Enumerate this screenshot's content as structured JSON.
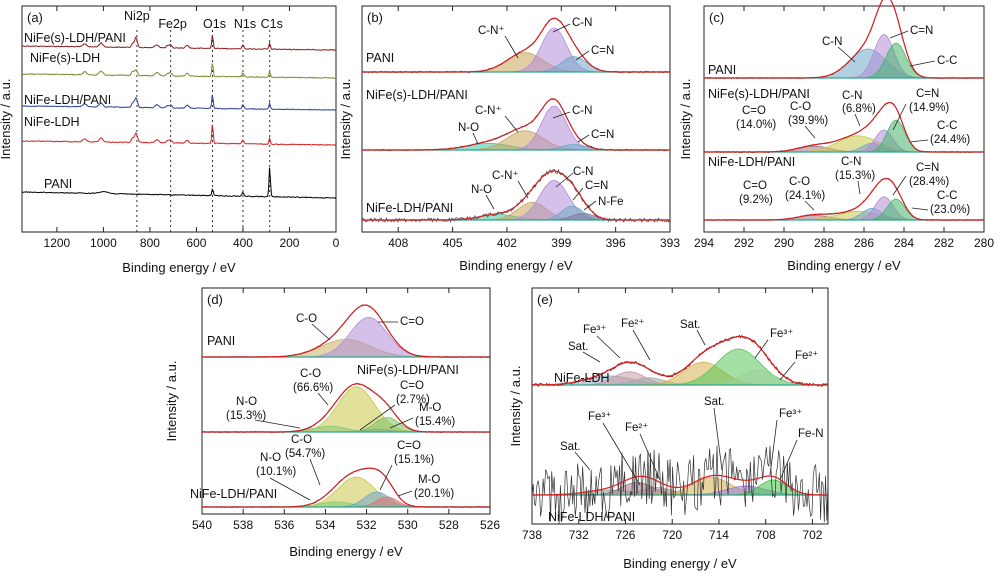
{
  "chart_data": [
    {
      "id": "a",
      "type": "line",
      "panel_label": "(a)",
      "xlabel": "Binding energy / eV",
      "ylabel": "Intensity / a.u.",
      "xlim": [
        1350,
        0
      ],
      "reversed_x": true,
      "xticks": [
        1200,
        1000,
        800,
        600,
        400,
        200,
        0
      ],
      "peak_markers": [
        {
          "name": "Ni2p",
          "x": 856
        },
        {
          "name": "Fe2p",
          "x": 711
        },
        {
          "name": "O1s",
          "x": 531
        },
        {
          "name": "N1s",
          "x": 400
        },
        {
          "name": "C1s",
          "x": 285
        }
      ],
      "series": [
        {
          "name": "NiFe(s)-LDH/PANI",
          "color": "#8b1c1c"
        },
        {
          "name": "NiFe(s)-LDH",
          "color": "#7a8a2a"
        },
        {
          "name": "NiFe-LDH/PANI",
          "color": "#2a3f9a"
        },
        {
          "name": "NiFe-LDH",
          "color": "#d42020"
        },
        {
          "name": "PANI",
          "color": "#000000"
        }
      ]
    },
    {
      "id": "b",
      "type": "area",
      "panel_label": "(b)",
      "xlabel": "Binding energy / eV",
      "ylabel": "Intensity / a.u.",
      "xlim": [
        410,
        393
      ],
      "reversed_x": true,
      "xticks": [
        408,
        405,
        402,
        399,
        396,
        393
      ],
      "samples": [
        {
          "name": "PANI",
          "components": [
            {
              "label": "C-N⁺",
              "center": 401.0,
              "color": "#c9a55a"
            },
            {
              "label": "C-N",
              "center": 399.4,
              "color": "#b28cd9"
            },
            {
              "label": "C=N",
              "center": 398.3,
              "color": "#6fa8c8"
            }
          ]
        },
        {
          "name": "NiFe(s)-LDH/PANI",
          "components": [
            {
              "label": "N-O",
              "center": 403.0,
              "color": "#3fc9a6"
            },
            {
              "label": "C-N⁺",
              "center": 401.0,
              "color": "#c9a55a"
            },
            {
              "label": "C-N",
              "center": 399.4,
              "color": "#b28cd9"
            },
            {
              "label": "C=N",
              "center": 398.3,
              "color": "#6fa8c8"
            }
          ]
        },
        {
          "name": "NiFe-LDH/PANI",
          "components": [
            {
              "label": "N-O",
              "center": 402.5,
              "color": "#3fc9a6"
            },
            {
              "label": "C-N⁺",
              "center": 400.6,
              "color": "#c9a55a"
            },
            {
              "label": "C-N",
              "center": 399.4,
              "color": "#b28cd9"
            },
            {
              "label": "C=N",
              "center": 398.4,
              "color": "#6fa8c8"
            },
            {
              "label": "N-Fe",
              "center": 397.8,
              "color": "#7a7a9a"
            }
          ]
        }
      ]
    },
    {
      "id": "c",
      "type": "area",
      "panel_label": "(c)",
      "xlabel": "Binding energy / eV",
      "ylabel": "Intensity / a.u.",
      "xlim": [
        294,
        280
      ],
      "reversed_x": true,
      "xticks": [
        294,
        292,
        290,
        288,
        286,
        284,
        282,
        280
      ],
      "samples": [
        {
          "name": "PANI",
          "components": [
            {
              "label": "C-N",
              "center": 285.8,
              "color": "#6fa8c8"
            },
            {
              "label": "C=N",
              "center": 285.0,
              "color": "#b28cd9"
            },
            {
              "label": "C-C",
              "center": 284.4,
              "color": "#46b46b"
            }
          ]
        },
        {
          "name": "NiFe(s)-LDH/PANI",
          "components": [
            {
              "label": "C=O",
              "percent": "(14.0%)",
              "center": 288.5,
              "color": "#a0788a"
            },
            {
              "label": "C-O",
              "percent": "(39.9%)",
              "center": 286.3,
              "color": "#c8c84a"
            },
            {
              "label": "C-N",
              "percent": "(6.8%)",
              "center": 285.6,
              "color": "#6fa8c8"
            },
            {
              "label": "C=N",
              "percent": "(14.9%)",
              "center": 285.0,
              "color": "#b28cd9"
            },
            {
              "label": "C-C",
              "percent": "(24.4%)",
              "center": 284.4,
              "color": "#46b46b"
            }
          ]
        },
        {
          "name": "NiFe-LDH/PANI",
          "components": [
            {
              "label": "C=O",
              "percent": "(9.2%)",
              "center": 288.5,
              "color": "#a0788a"
            },
            {
              "label": "C-O",
              "percent": "(24.1%)",
              "center": 286.3,
              "color": "#c8c84a"
            },
            {
              "label": "C-N",
              "percent": "(15.3%)",
              "center": 285.6,
              "color": "#6fa8c8"
            },
            {
              "label": "C=N",
              "percent": "(28.4%)",
              "center": 285.0,
              "color": "#b28cd9"
            },
            {
              "label": "C-C",
              "percent": "(23.0%)",
              "center": 284.4,
              "color": "#46b46b"
            }
          ]
        }
      ]
    },
    {
      "id": "d",
      "type": "area",
      "panel_label": "(d)",
      "xlabel": "Binding energy / eV",
      "ylabel": "Intensity / a.u.",
      "xlim": [
        540,
        526
      ],
      "reversed_x": true,
      "xticks": [
        540,
        538,
        536,
        534,
        532,
        530,
        528,
        526
      ],
      "samples": [
        {
          "name": "PANI",
          "components": [
            {
              "label": "C-O",
              "center": 533.0,
              "color": "#c9b06a"
            },
            {
              "label": "C=O",
              "center": 531.9,
              "color": "#b28cd9"
            }
          ]
        },
        {
          "name": "NiFe(s)-LDH/PANI",
          "components": [
            {
              "label": "N-O",
              "percent": "(15.3%)",
              "center": 533.8,
              "color": "#3fc9a6"
            },
            {
              "label": "C-O",
              "percent": "(66.6%)",
              "center": 532.5,
              "color": "#c8c84a"
            },
            {
              "label": "C=O",
              "percent": "(2.7%)",
              "center": 531.5,
              "color": "#6fa8c8"
            },
            {
              "label": "M-O",
              "percent": "(15.4%)",
              "center": 531.0,
              "color": "#7fc060"
            }
          ]
        },
        {
          "name": "NiFe-LDH/PANI",
          "components": [
            {
              "label": "N-O",
              "percent": "(10.1%)",
              "center": 533.5,
              "color": "#3fc9a6"
            },
            {
              "label": "C-O",
              "percent": "(54.7%)",
              "center": 532.5,
              "color": "#c8c84a"
            },
            {
              "label": "C=O",
              "percent": "(15.1%)",
              "center": 531.5,
              "color": "#6fa8c8"
            },
            {
              "label": "M-O",
              "percent": "(20.1%)",
              "center": 531.0,
              "color": "#e07070"
            }
          ]
        }
      ]
    },
    {
      "id": "e",
      "type": "area",
      "panel_label": "(e)",
      "xlabel": "Binding energy / eV",
      "ylabel": "Intensity / a.u.",
      "xlim": [
        738,
        700
      ],
      "reversed_x": true,
      "xticks": [
        738,
        732,
        726,
        720,
        714,
        708,
        702
      ],
      "samples": [
        {
          "name": "NiFe-LDH",
          "components": [
            {
              "label": "Sat.",
              "center": 728.0,
              "color": "#8fa6c8"
            },
            {
              "label": "Fe³⁺",
              "center": 725.5,
              "color": "#c89aa0"
            },
            {
              "label": "Fe²⁺",
              "center": 723.5,
              "color": "#a8a8a8"
            },
            {
              "label": "Sat.",
              "center": 716.5,
              "color": "#d4b050"
            },
            {
              "label": "Fe³⁺",
              "center": 712.0,
              "color": "#5ac45a"
            },
            {
              "label": "Fe²⁺",
              "center": 710.0,
              "color": "#9ad09a"
            }
          ]
        },
        {
          "name": "NiFe-LDH/PANI",
          "components": [
            {
              "label": "Sat.",
              "center": 728.0,
              "color": "#a0a0a0"
            },
            {
              "label": "Fe³⁺",
              "center": 724.5,
              "color": "#a0788a"
            },
            {
              "label": "Fe²⁺",
              "center": 722.0,
              "color": "#b09090"
            },
            {
              "label": "Sat.",
              "center": 715.0,
              "color": "#d4b050"
            },
            {
              "label": "Fe³⁺",
              "center": 710.5,
              "color": "#9a7ad8"
            },
            {
              "label": "Fe-N",
              "center": 707.0,
              "color": "#46c446"
            }
          ]
        }
      ]
    }
  ],
  "text": {
    "a": {
      "label": "(a)",
      "xlabel": "Binding energy / eV",
      "ylabel": "Intensity / a.u.",
      "ticks": [
        "1200",
        "1000",
        "800",
        "600",
        "400",
        "200",
        "0"
      ],
      "markers": [
        "Ni2p",
        "Fe2p",
        "O1s",
        "N1s",
        "C1s"
      ],
      "samples": [
        "NiFe(s)-LDH/PANI",
        "NiFe(s)-LDH",
        "NiFe-LDH/PANI",
        "NiFe-LDH",
        "PANI"
      ]
    },
    "b": {
      "label": "(b)",
      "xlabel": "Binding energy / eV",
      "ylabel": "Intensity / a.u.",
      "ticks": [
        "408",
        "405",
        "402",
        "399",
        "396",
        "393"
      ],
      "samples": [
        "PANI",
        "NiFe(s)-LDH/PANI",
        "NiFe-LDH/PANI"
      ],
      "peaks": [
        "C-N⁺",
        "C-N",
        "C=N",
        "C-N⁺",
        "N-O",
        "C-N",
        "C=N",
        "C-N⁺",
        "N-O",
        "C-N",
        "C=N",
        "N-Fe"
      ]
    },
    "c": {
      "label": "(c)",
      "xlabel": "Binding energy / eV",
      "ylabel": "Intensity / a.u.",
      "ticks": [
        "294",
        "292",
        "290",
        "288",
        "286",
        "284",
        "282",
        "280"
      ],
      "samples": [
        "PANI",
        "NiFe(s)-LDH/PANI",
        "NiFe-LDH/PANI"
      ],
      "peaks": [
        "C-N",
        "C=N",
        "C-C",
        "C=O",
        "(14.0%)",
        "C-O",
        "(39.9%)",
        "C-N",
        "(6.8%)",
        "C=N",
        "(14.9%)",
        "C-C",
        "(24.4%)",
        "C=O",
        "(9.2%)",
        "C-O",
        "(24.1%)",
        "C-N",
        "(15.3%)",
        "C=N",
        "(28.4%)",
        "C-C",
        "(23.0%)"
      ]
    },
    "d": {
      "label": "(d)",
      "xlabel": "Binding energy / eV",
      "ylabel": "Intensity / a.u.",
      "ticks": [
        "540",
        "538",
        "536",
        "534",
        "532",
        "530",
        "528",
        "526"
      ],
      "samples": [
        "PANI",
        "NiFe(s)-LDH/PANI",
        "NiFe-LDH/PANI"
      ],
      "peaks": [
        "C-O",
        "C=O",
        "C-O",
        "(66.6%)",
        "N-O",
        "(15.3%)",
        "C=O",
        "(2.7%)",
        "M-O",
        "(15.4%)",
        "C-O",
        "(54.7%)",
        "N-O",
        "(10.1%)",
        "C=O",
        "(15.1%)",
        "M-O",
        "(20.1%)"
      ]
    },
    "e": {
      "label": "(e)",
      "xlabel": "Binding energy / eV",
      "ylabel": "Intensity / a.u.",
      "ticks": [
        "738",
        "732",
        "726",
        "720",
        "714",
        "708",
        "702"
      ],
      "samples": [
        "NiFe-LDH",
        "NiFe-LDH/PANI"
      ],
      "peaks": [
        "Fe³⁺",
        "Fe²⁺",
        "Sat.",
        "Sat.",
        "Fe³⁺",
        "Fe²⁺",
        "Fe³⁺",
        "Fe²⁺",
        "Sat.",
        "Sat.",
        "Fe³⁺",
        "Fe-N"
      ]
    }
  }
}
